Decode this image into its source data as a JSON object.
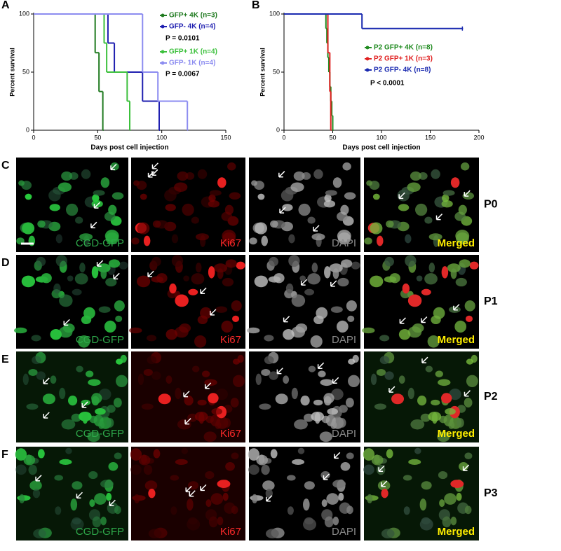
{
  "chart_data": [
    {
      "type": "line",
      "step": true,
      "panel": "A",
      "ylabel": "Percent survival",
      "xlabel": "Days post cell injection",
      "xlim": [
        0,
        150
      ],
      "xticks": [
        0,
        50,
        100,
        150
      ],
      "ylim": [
        0,
        100
      ],
      "yticks": [
        0,
        50,
        100
      ],
      "series": [
        {
          "name": "GFP+ 4K (n=3)",
          "color": "#1f7a1f",
          "x": [
            0,
            48,
            51,
            54
          ],
          "values": [
            100,
            66.7,
            33.3,
            0
          ]
        },
        {
          "name": "GFP- 4K (n=4)",
          "color": "#1f1fb0",
          "x": [
            0,
            58,
            63,
            85,
            98
          ],
          "values": [
            100,
            75,
            50,
            25,
            0
          ]
        },
        {
          "name": "GFP+ 1K (n=4)",
          "color": "#3cc03c",
          "x": [
            0,
            55,
            57,
            73,
            75
          ],
          "values": [
            100,
            75,
            50,
            25,
            0
          ]
        },
        {
          "name": "GFP- 1K (n=4)",
          "color": "#8c8cf0",
          "x": [
            0,
            85,
            97,
            120
          ],
          "values": [
            100,
            50,
            25,
            0
          ]
        }
      ],
      "annotations": [
        "P = 0.0101",
        "P = 0.0067"
      ]
    },
    {
      "type": "line",
      "step": true,
      "panel": "B",
      "ylabel": "Percent survival",
      "xlabel": "Days post cell injection",
      "xlim": [
        0,
        200
      ],
      "xticks": [
        0,
        50,
        100,
        150,
        200
      ],
      "ylim": [
        0,
        100
      ],
      "yticks": [
        0,
        50,
        100
      ],
      "series": [
        {
          "name": "P2 GFP+ 4K (n=8)",
          "color": "#1f8a1f",
          "x": [
            0,
            43,
            44,
            45,
            46,
            47,
            48,
            49,
            50
          ],
          "values": [
            100,
            87.5,
            75,
            62.5,
            50,
            37.5,
            25,
            12.5,
            0
          ]
        },
        {
          "name": "P2 GFP+ 1K (n=3)",
          "color": "#e02020",
          "x": [
            0,
            45,
            47,
            48
          ],
          "values": [
            100,
            66.7,
            33.3,
            0
          ]
        },
        {
          "name": "P2 GFP- 4K (n=8)",
          "color": "#1a2ab0",
          "x": [
            0,
            80,
            183
          ],
          "values": [
            100,
            87.5,
            87.5
          ]
        }
      ],
      "annotations": [
        "P < 0.0001"
      ]
    }
  ],
  "figure": {
    "rows": [
      {
        "letter": "C",
        "passage": "P0",
        "channels": [
          "CGD-GFP",
          "Ki67",
          "DAPI",
          "Merged"
        ]
      },
      {
        "letter": "D",
        "passage": "P1",
        "channels": [
          "CGD-GFP",
          "Ki67",
          "DAPI",
          "Merged"
        ]
      },
      {
        "letter": "E",
        "passage": "P2",
        "channels": [
          "CGD-GFP",
          "Ki67",
          "DAPI",
          "Merged"
        ]
      },
      {
        "letter": "F",
        "passage": "P3",
        "channels": [
          "CGD-GFP",
          "Ki67",
          "DAPI",
          "Merged"
        ]
      }
    ]
  }
}
